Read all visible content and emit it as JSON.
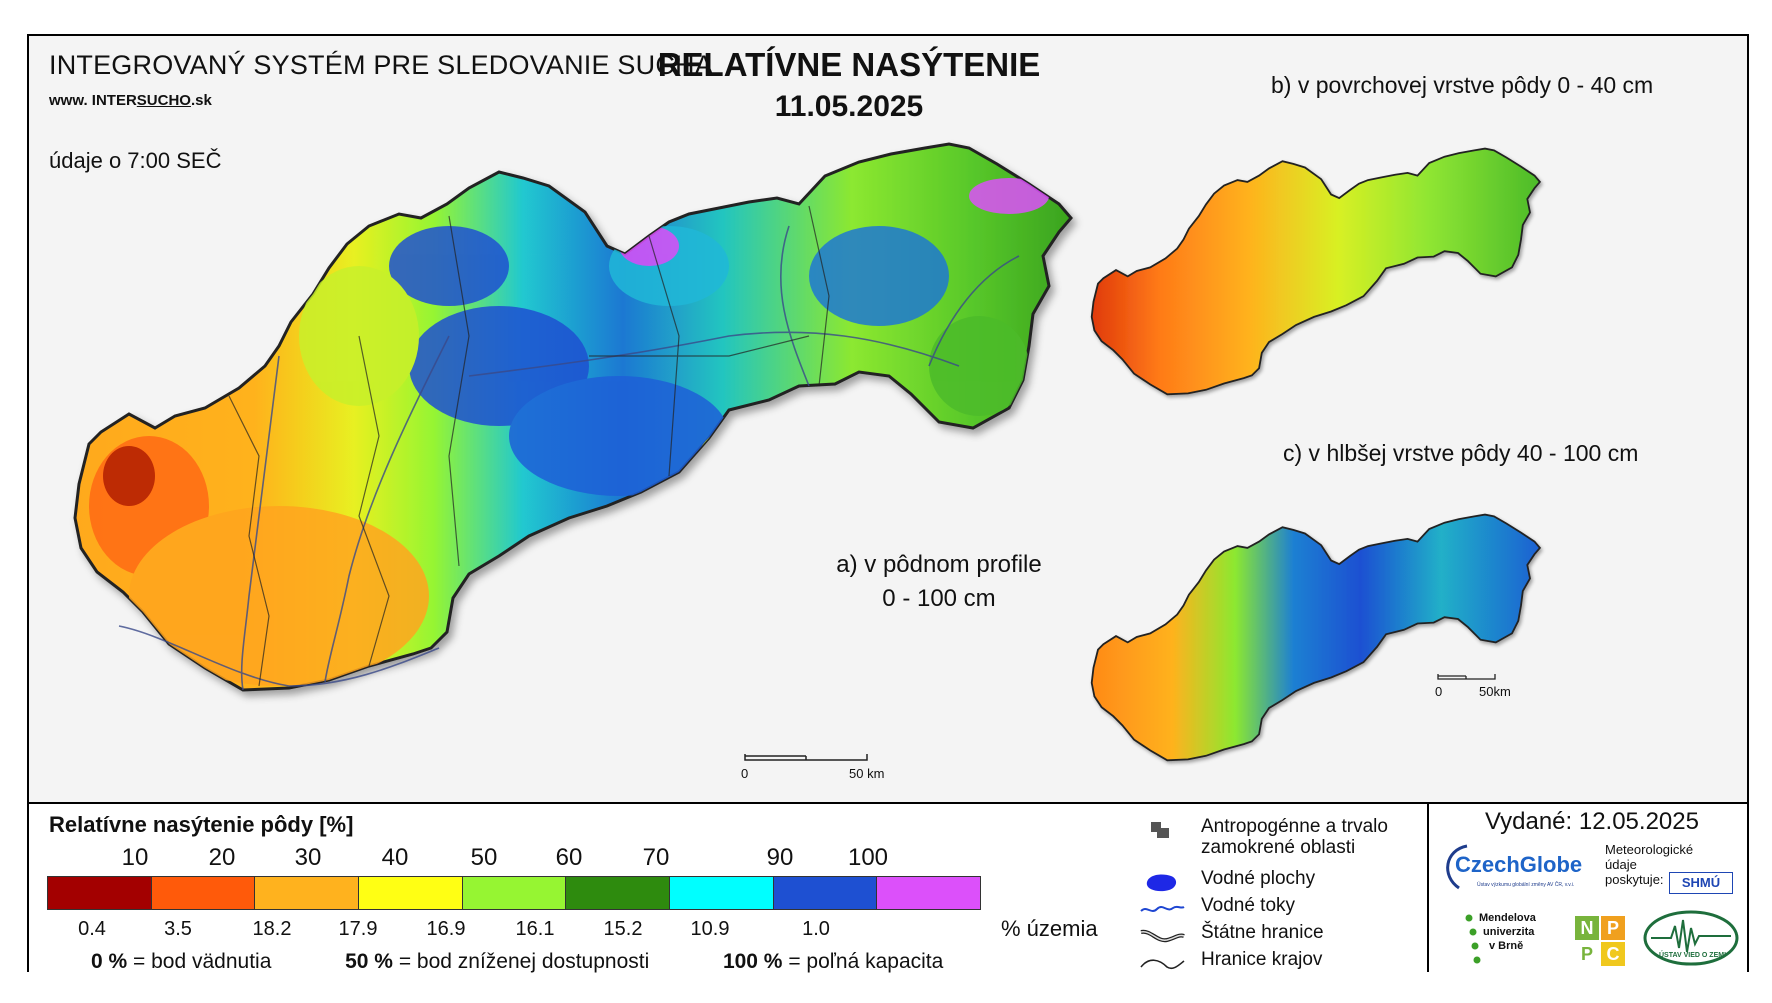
{
  "header": {
    "system_title": "INTEGROVANÝ SYSTÉM PRE SLEDOVANIE SUCHA",
    "url_prefix": "www. INTER",
    "url_brand": "SUCHO",
    "url_suffix": ".sk",
    "data_time": "údaje o 7:00 SEČ",
    "main_title": "RELATÍVNE NASÝTENIE",
    "date": "11.05.2025"
  },
  "maps": {
    "a": {
      "caption_line1": "a) v pôdnom profile",
      "caption_line2": "0 - 100 cm"
    },
    "b": {
      "caption": "b) v povrchovej vrstve pôdy 0 - 40 cm"
    },
    "c": {
      "caption": "c) v hlbšej vrstve pôdy 40 - 100 cm"
    },
    "scale_main": {
      "start": "0",
      "end": "50 km"
    },
    "scale_small": {
      "start": "0",
      "end": "50km"
    }
  },
  "legend": {
    "title": "Relatívne nasýtenie pôdy [%]",
    "ticks": [
      "10",
      "20",
      "30",
      "40",
      "50",
      "60",
      "70",
      "90",
      "100"
    ],
    "colors": [
      "#a30000",
      "#ff5a0a",
      "#ffb21e",
      "#ffff14",
      "#96f532",
      "#2e8b0e",
      "#00ffff",
      "#1e50d2",
      "#dc50fa"
    ],
    "percent_area": [
      "0.4",
      "3.5",
      "18.2",
      "17.9",
      "16.9",
      "16.1",
      "15.2",
      "10.9",
      "1.0"
    ],
    "percent_unit": "% územia",
    "def1_value": "0 %",
    "def1_text": "= bod vädnutia",
    "def2_value": "50 %",
    "def2_text": "= bod zníženej dostupnosti",
    "def3_value": "100 %",
    "def3_text": "= poľná kapacita"
  },
  "symbols": [
    {
      "icon": "anthropogenic-area-icon",
      "label_line1": "Antropogénne a trvalo",
      "label_line2": "zamokrené oblasti"
    },
    {
      "icon": "water-body-icon",
      "label_line1": "Vodné plochy"
    },
    {
      "icon": "water-stream-icon",
      "label_line1": "Vodné toky"
    },
    {
      "icon": "state-border-icon",
      "label_line1": "Štátne hranice"
    },
    {
      "icon": "region-border-icon",
      "label_line1": "Hranice krajov"
    }
  ],
  "issuer": {
    "issued": "Vydané: 12.05.2025",
    "czechglobe": "CzechGlobe",
    "czechglobe_sub": "Ústav výzkumu globální změny AV ČR, v.v.i.",
    "meteo_line1": "Meteorologické",
    "meteo_line2": "údaje",
    "meteo_line3": "poskytuje:",
    "shmu": "SHMÚ",
    "mendel_line1": "Mendelova",
    "mendel_line2": "univerzita",
    "mendel_line3": "v Brně",
    "nppc": [
      "N",
      "P",
      "P",
      "C"
    ],
    "uvz": "ÚSTAV VIED O ZEMI"
  }
}
